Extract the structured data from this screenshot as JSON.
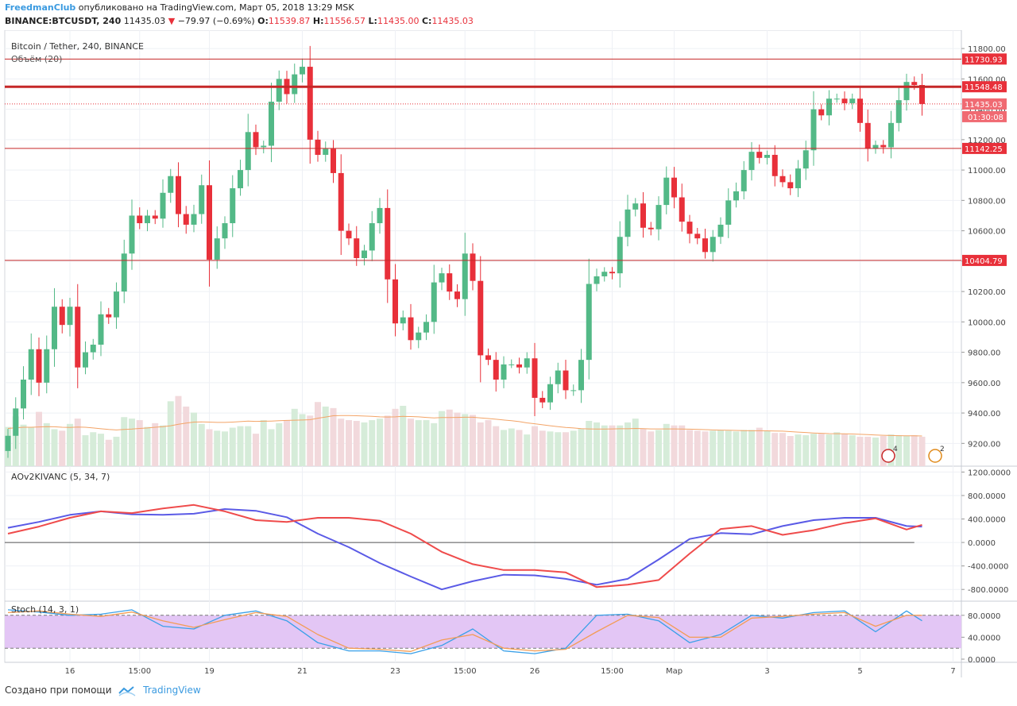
{
  "header": {
    "author": "FreedmanClub",
    "published_text": "опубликовано на TradingView.com, Март 05, 2018 13:29 MSK",
    "symbol": "BINANCE:BTCUSDT, 240",
    "last_price": "11435.03",
    "change_arrow": "▼",
    "change": "−79.97 (−0.69%)",
    "o_label": "O:",
    "o_value": "11539.87",
    "h_label": "H:",
    "h_value": "11556.57",
    "l_label": "L:",
    "l_value": "11435.00",
    "c_label": "C:",
    "c_value": "11435.03"
  },
  "footer": {
    "created_with": "Создано при помощи",
    "brand": "TradingView"
  },
  "colors": {
    "up": "#26a69a",
    "up_fill": "#53b987",
    "down": "#e8303a",
    "level": "#c62828",
    "blue_line": "#5a5ae6",
    "red_line": "#ef4b4b",
    "stoch_band": "#e3c6f5",
    "grid": "#eef0f5"
  },
  "chart_data": [
    {
      "type": "candlestick",
      "title": "Bitcoin / Tether, 240, BINANCE",
      "volume_label": "Объём (20)",
      "ylim": [
        9050,
        11900
      ],
      "y_ticks": [
        "9200.00",
        "9400.00",
        "9600.00",
        "9800.00",
        "10000.00",
        "10200.00",
        "10400.00",
        "10600.00",
        "10800.00",
        "11000.00",
        "11200.00",
        "11400.00",
        "11600.00",
        "11800.00"
      ],
      "x_ticks": [
        "16",
        "15:00",
        "19",
        "21",
        "23",
        "15:00",
        "26",
        "15:00",
        "Мар",
        "3",
        "5",
        "7"
      ],
      "levels": [
        {
          "value": 11730.93,
          "label": "11730.93"
        },
        {
          "value": 11548.48,
          "label": "11548.48"
        },
        {
          "value": 11142.25,
          "label": "11142.25"
        },
        {
          "value": 10404.79,
          "label": "10404.79"
        }
      ],
      "current_price": {
        "value": 11435.03,
        "label": "11435.03",
        "countdown": "01:30:08"
      },
      "event_badges": [
        "4",
        "2"
      ],
      "close": [
        9250,
        9430,
        9620,
        9820,
        9600,
        9820,
        10100,
        9980,
        10100,
        9700,
        9800,
        9850,
        10050,
        10030,
        10200,
        10450,
        10700,
        10650,
        10700,
        10680,
        10850,
        10960,
        10710,
        10640,
        10710,
        10900,
        10410,
        10550,
        10650,
        10880,
        11000,
        11250,
        11150,
        11160,
        11450,
        11600,
        11500,
        11630,
        11680,
        11200,
        11100,
        11140,
        10980,
        10600,
        10550,
        10420,
        10470,
        10650,
        10750,
        10280,
        9990,
        10030,
        9880,
        9930,
        10000,
        10260,
        10320,
        10200,
        10150,
        10450,
        10270,
        9780,
        9750,
        9620,
        9720,
        9720,
        9700,
        9760,
        9500,
        9470,
        9590,
        9680,
        9550,
        9550,
        9750,
        10250,
        10300,
        10330,
        10320,
        10560,
        10740,
        10780,
        10620,
        10610,
        10770,
        10950,
        10820,
        10660,
        10580,
        10550,
        10460,
        10560,
        10640,
        10800,
        10860,
        11000,
        11120,
        11080,
        11100,
        10960,
        10920,
        10880,
        11010,
        11130,
        11400,
        11360,
        11470,
        11470,
        11440,
        11470,
        11310,
        11140,
        11165,
        11150,
        11310,
        11460,
        11580,
        11560,
        11435
      ],
      "volume": [
        260,
        330,
        275,
        260,
        360,
        285,
        245,
        235,
        280,
        315,
        205,
        225,
        215,
        175,
        195,
        325,
        315,
        305,
        260,
        285,
        270,
        430,
        465,
        395,
        355,
        280,
        245,
        235,
        230,
        255,
        265,
        265,
        215,
        305,
        245,
        285,
        305,
        380,
        345,
        335,
        425,
        395,
        385,
        315,
        305,
        300,
        290,
        305,
        315,
        335,
        380,
        400,
        315,
        305,
        305,
        285,
        365,
        375,
        355,
        345,
        340,
        290,
        305,
        265,
        240,
        250,
        240,
        210,
        265,
        235,
        230,
        225,
        225,
        235,
        250,
        300,
        290,
        270,
        270,
        270,
        290,
        315,
        250,
        230,
        240,
        280,
        270,
        270,
        240,
        235,
        230,
        235,
        240,
        235,
        230,
        240,
        240,
        255,
        235,
        220,
        220,
        200,
        210,
        205,
        215,
        215,
        210,
        225,
        215,
        205,
        195,
        195,
        190,
        200,
        210,
        205,
        200,
        205,
        195
      ],
      "volume_ma": [
        250,
        255,
        258,
        258,
        260,
        262,
        261,
        258,
        257,
        259,
        258,
        253,
        248,
        243,
        240,
        243,
        246,
        250,
        253,
        258,
        262,
        268,
        278,
        286,
        292,
        293,
        292,
        290,
        290,
        292,
        295,
        299,
        297,
        298,
        299,
        301,
        303,
        305,
        306,
        308,
        318,
        326,
        334,
        336,
        336,
        334,
        332,
        330,
        327,
        326,
        327,
        330,
        329,
        327,
        323,
        320,
        322,
        322,
        323,
        324,
        324,
        320,
        316,
        311,
        306,
        301,
        295,
        287,
        281,
        274,
        268,
        262,
        257,
        253,
        249,
        247,
        246,
        246,
        247,
        248,
        248,
        250,
        249,
        247,
        247,
        247,
        247,
        246,
        245,
        244,
        242,
        240,
        239,
        238,
        237,
        236,
        235,
        235,
        234,
        233,
        232,
        229,
        226,
        223,
        220,
        218,
        216,
        215,
        214,
        213,
        211,
        209,
        207,
        205,
        203,
        202,
        201,
        201,
        200
      ]
    },
    {
      "type": "line",
      "title": "AOv2KIVANC (5, 34, 7)",
      "ylim": [
        -1000,
        1300
      ],
      "y_ticks": [
        "1200.0000",
        "800.0000",
        "400.0000",
        "0.0000",
        "-400.0000",
        "-800.0000"
      ],
      "series": [
        {
          "x": [
            0,
            4,
            8,
            12,
            16,
            20,
            24,
            28,
            32,
            36,
            40,
            44,
            48,
            52,
            56,
            60,
            64,
            68,
            72,
            76,
            80,
            84,
            88,
            92,
            96,
            100,
            104,
            108,
            112,
            116,
            118
          ],
          "values": [
            250,
            350,
            470,
            530,
            480,
            470,
            490,
            570,
            540,
            430,
            150,
            -80,
            -350,
            -580,
            -800,
            -660,
            -550,
            -560,
            -620,
            -720,
            -620,
            -290,
            60,
            160,
            140,
            280,
            380,
            420,
            420,
            280,
            270
          ]
        },
        {
          "x": [
            0,
            4,
            8,
            12,
            16,
            20,
            24,
            28,
            32,
            36,
            40,
            44,
            48,
            52,
            56,
            60,
            64,
            68,
            72,
            76,
            80,
            84,
            88,
            92,
            96,
            100,
            104,
            108,
            112,
            116,
            118
          ],
          "values": [
            150,
            270,
            420,
            530,
            500,
            580,
            640,
            530,
            380,
            350,
            420,
            420,
            370,
            150,
            -160,
            -370,
            -470,
            -470,
            -510,
            -760,
            -720,
            -640,
            -190,
            230,
            280,
            130,
            210,
            330,
            410,
            220,
            300
          ]
        }
      ]
    },
    {
      "type": "line",
      "title": "Stoch (14, 3, 1)",
      "ylim": [
        0,
        100
      ],
      "y_ticks": [
        "80.0000",
        "40.0000",
        "0.0000"
      ],
      "band": [
        20,
        80
      ],
      "series": [
        {
          "x": [
            0,
            4,
            8,
            12,
            16,
            20,
            24,
            28,
            32,
            36,
            40,
            44,
            48,
            52,
            56,
            60,
            64,
            68,
            72,
            76,
            80,
            84,
            88,
            92,
            96,
            100,
            104,
            108,
            112,
            116,
            118
          ],
          "values": [
            90,
            86,
            80,
            82,
            90,
            60,
            55,
            80,
            88,
            70,
            30,
            15,
            15,
            10,
            25,
            55,
            15,
            10,
            20,
            80,
            82,
            70,
            30,
            45,
            80,
            75,
            85,
            88,
            50,
            88,
            70
          ]
        },
        {
          "x": [
            0,
            4,
            8,
            12,
            16,
            20,
            24,
            28,
            32,
            36,
            40,
            44,
            48,
            52,
            56,
            60,
            64,
            68,
            72,
            76,
            80,
            84,
            88,
            92,
            96,
            100,
            104,
            108,
            112,
            116,
            118
          ],
          "values": [
            85,
            88,
            82,
            78,
            86,
            70,
            58,
            72,
            85,
            78,
            45,
            20,
            18,
            14,
            35,
            45,
            20,
            15,
            18,
            50,
            80,
            76,
            40,
            40,
            75,
            78,
            82,
            85,
            60,
            80,
            80
          ]
        }
      ]
    }
  ]
}
